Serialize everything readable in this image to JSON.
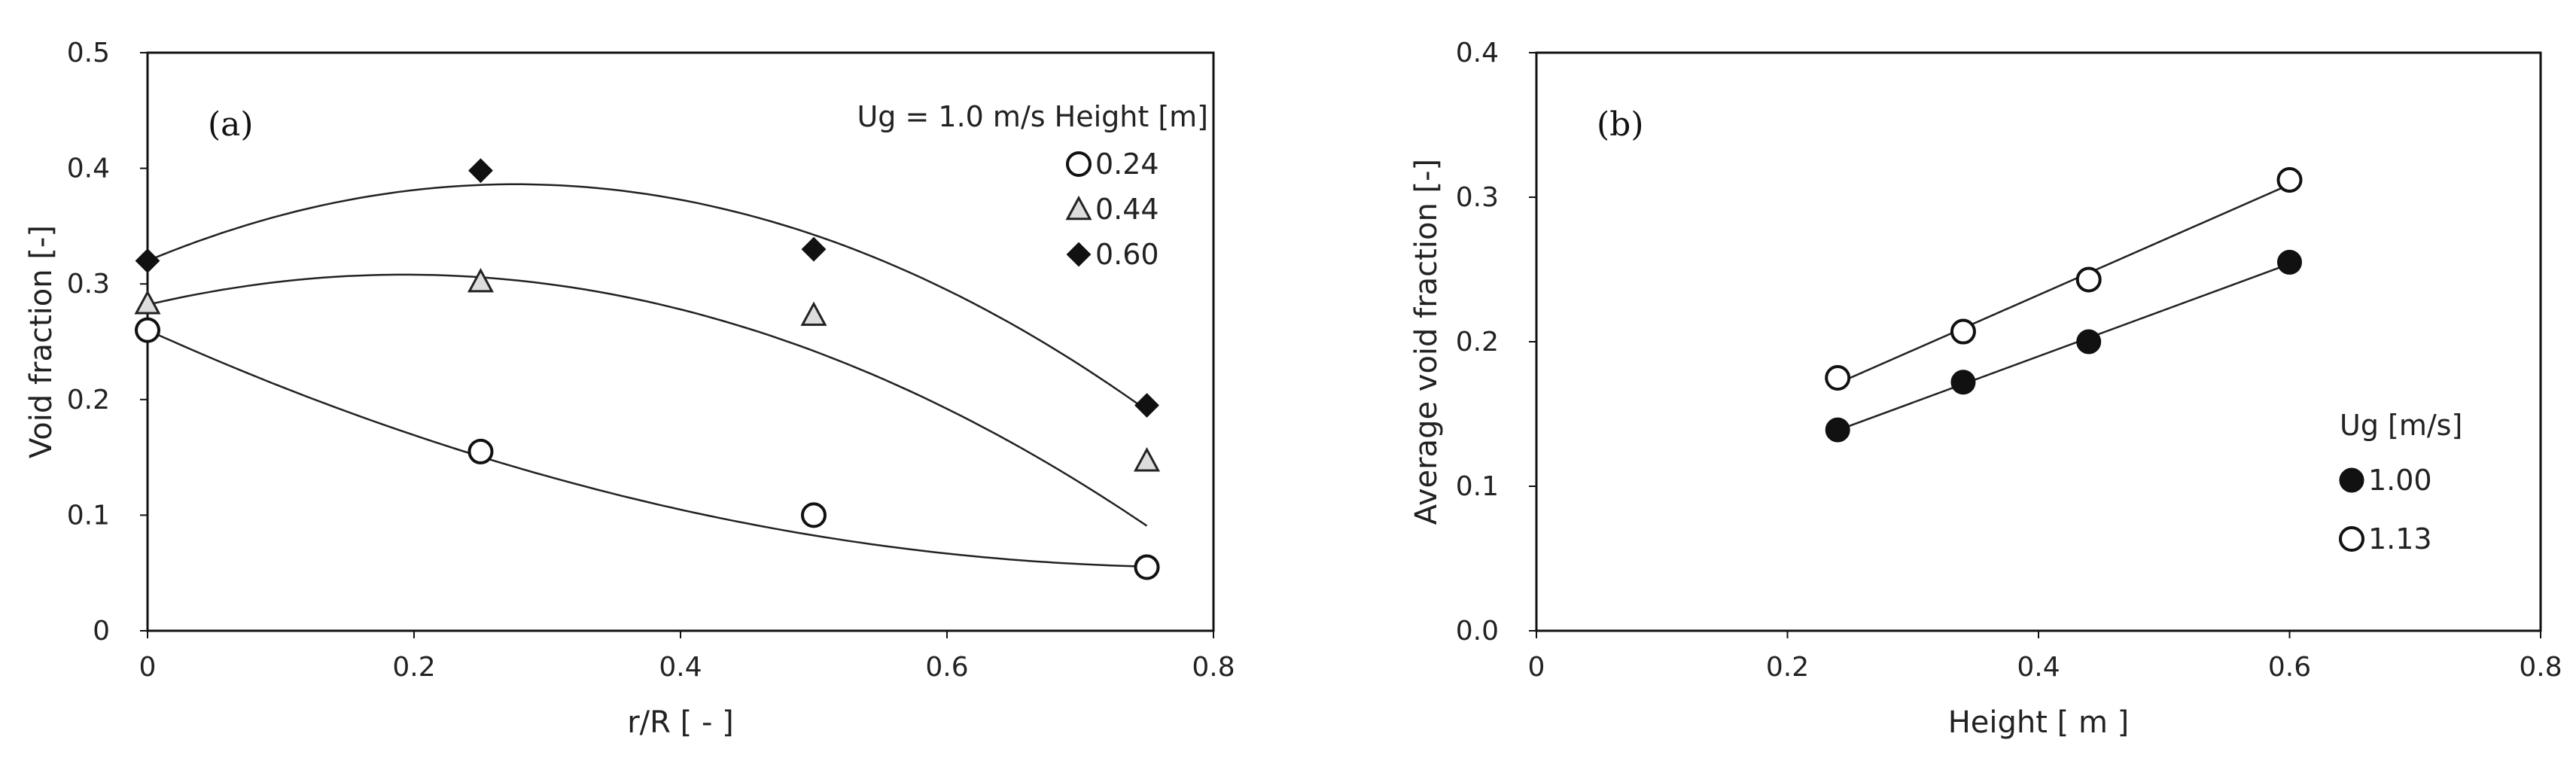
{
  "chart_data": [
    {
      "type": "scatter",
      "panel_label": "(a)",
      "xlabel": "r/R [ - ]",
      "ylabel": "Void fraction [-]",
      "xlim": [
        0,
        0.8
      ],
      "ylim": [
        0,
        0.5
      ],
      "xticks": [
        0,
        0.2,
        0.4,
        0.6,
        0.8
      ],
      "yticks": [
        0,
        0.1,
        0.2,
        0.3,
        0.4,
        0.5
      ],
      "xtick_labels": [
        "0",
        "0.2",
        "0.4",
        "0.6",
        "0.8"
      ],
      "ytick_labels": [
        "0",
        "0.1",
        "0.2",
        "0.3",
        "0.4",
        "0.5"
      ],
      "legend": {
        "title": "Ug = 1.0 m/s Height [m]",
        "position": "top-right"
      },
      "series": [
        {
          "name": "0.24",
          "marker": "circle-open",
          "x": [
            0,
            0.25,
            0.5,
            0.75
          ],
          "y": [
            0.26,
            0.155,
            0.1,
            0.055
          ],
          "fit": [
            0.26,
            -0.52,
            0.33
          ]
        },
        {
          "name": "0.44",
          "marker": "triangle-open",
          "x": [
            0,
            0.25,
            0.5,
            0.75
          ],
          "y": [
            0.283,
            0.302,
            0.273,
            0.147
          ],
          "fit": [
            0.282,
            0.27,
            -0.7
          ]
        },
        {
          "name": "0.60",
          "marker": "diamond-filled",
          "x": [
            0,
            0.25,
            0.5,
            0.75
          ],
          "y": [
            0.32,
            0.398,
            0.33,
            0.195
          ],
          "fit": [
            0.32,
            0.48,
            -0.87
          ]
        }
      ]
    },
    {
      "type": "scatter",
      "panel_label": "(b)",
      "xlabel": "Height [ m ]",
      "ylabel": "Average void fraction [-]",
      "xlim": [
        0,
        0.8
      ],
      "ylim": [
        0,
        0.4
      ],
      "xticks": [
        0,
        0.2,
        0.4,
        0.6,
        0.8
      ],
      "yticks": [
        0,
        0.1,
        0.2,
        0.3,
        0.4
      ],
      "xtick_labels": [
        "0",
        "0.2",
        "0.4",
        "0.6",
        "0.8"
      ],
      "ytick_labels": [
        "0.0",
        "0.1",
        "0.2",
        "0.3",
        "0.4"
      ],
      "legend": {
        "title": "Ug [m/s]",
        "position": "right"
      },
      "series": [
        {
          "name": "1.00",
          "marker": "circle-filled",
          "x": [
            0.24,
            0.34,
            0.44,
            0.6
          ],
          "y": [
            0.139,
            0.172,
            0.2,
            0.255
          ]
        },
        {
          "name": "1.13",
          "marker": "circle-open",
          "x": [
            0.24,
            0.34,
            0.44,
            0.6
          ],
          "y": [
            0.175,
            0.207,
            0.243,
            0.312
          ]
        }
      ]
    }
  ]
}
